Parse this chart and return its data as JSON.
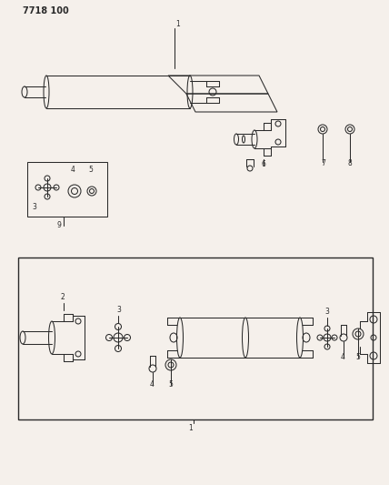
{
  "title": "7718 100",
  "bg_color": "#f5f0eb",
  "line_color": "#2a2a2a",
  "fig_width": 4.28,
  "fig_height": 5.33,
  "dpi": 100
}
